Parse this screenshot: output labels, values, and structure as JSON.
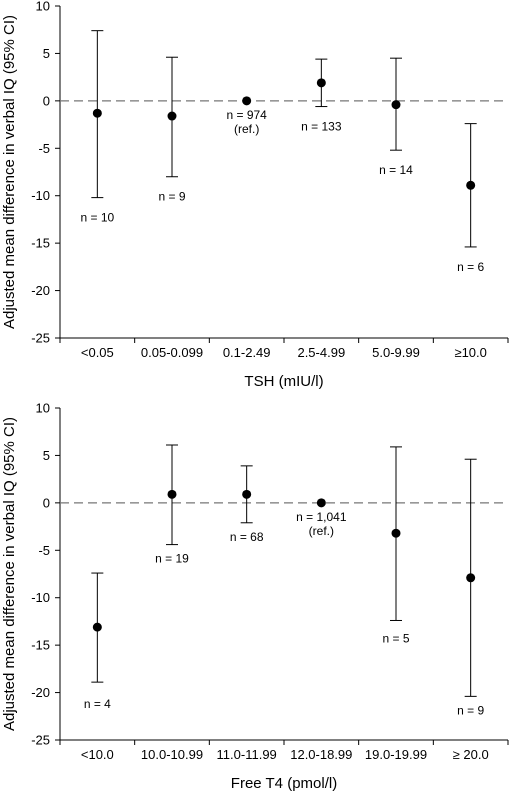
{
  "chart_data": [
    {
      "type": "scatter",
      "xlabel": "TSH (mIU/l)",
      "ylabel": "Adjusted mean difference in verbal IQ (95% CI)",
      "ylim": [
        -25,
        10
      ],
      "yticks": [
        10,
        5,
        0,
        -5,
        -10,
        -15,
        -20,
        -25
      ],
      "reference_line": 0,
      "grid": false,
      "categories": [
        "<0.05",
        "0.05-0.099",
        "0.1-2.49",
        "2.5-4.99",
        "5.0-9.99",
        "≥10.0"
      ],
      "values": [
        -1.3,
        -1.6,
        0,
        1.9,
        -0.4,
        -8.9
      ],
      "ci_lower": [
        -10.2,
        -8.0,
        null,
        -0.6,
        -5.2,
        -15.4
      ],
      "ci_upper": [
        7.4,
        4.6,
        null,
        4.4,
        4.5,
        -2.4
      ],
      "n_labels": [
        "n = 10",
        "n = 9",
        "n = 974",
        "n = 133",
        "n = 14",
        "n = 6"
      ],
      "ref_index": 2,
      "ref_label": "(ref.)"
    },
    {
      "type": "scatter",
      "xlabel": "Free T4 (pmol/l)",
      "ylabel": "Adjusted mean difference in verbal IQ (95% CI)",
      "ylim": [
        -25,
        10
      ],
      "yticks": [
        10,
        5,
        0,
        -5,
        -10,
        -15,
        -20,
        -25
      ],
      "reference_line": 0,
      "grid": false,
      "categories": [
        "<10.0",
        "10.0-10.99",
        "11.0-11.99",
        "12.0-18.99",
        "19.0-19.99",
        "≥ 20.0"
      ],
      "values": [
        -13.1,
        0.9,
        0.9,
        0,
        -3.2,
        -7.9
      ],
      "ci_lower": [
        -18.9,
        -4.4,
        -2.1,
        null,
        -12.4,
        -20.4
      ],
      "ci_upper": [
        -7.4,
        6.1,
        3.9,
        null,
        5.9,
        4.6
      ],
      "n_labels": [
        "n = 4",
        "n = 19",
        "n = 68",
        "n = 1,041",
        "n = 5",
        "n = 9"
      ],
      "ref_index": 3,
      "ref_label": "(ref.)"
    }
  ]
}
